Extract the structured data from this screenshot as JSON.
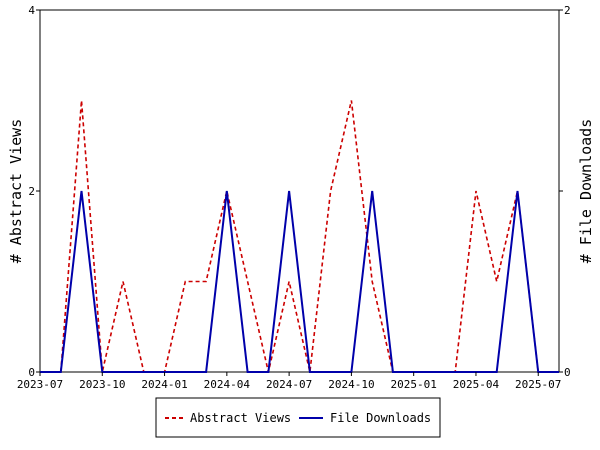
{
  "chart_data": {
    "type": "line",
    "title": "",
    "xlabel": "",
    "ylabel_left": "# Abstract Views",
    "ylabel_right": "# File Downloads",
    "ylim_left": [
      0,
      4
    ],
    "ylim_right": [
      0,
      2
    ],
    "yticks_left": [
      "0",
      "2",
      "4"
    ],
    "yticks_right": [
      "0",
      "1",
      "2"
    ],
    "xlim": [
      "2023-07",
      "2025-08"
    ],
    "x_tick_labels": [
      "2023-07",
      "2023-10",
      "2024-01",
      "2024-04",
      "2024-07",
      "2024-10",
      "2025-01",
      "2025-04",
      "2025-07"
    ],
    "grid": false,
    "legend_position": "bottom",
    "x": [
      "2023-07",
      "2023-08",
      "2023-09",
      "2023-10",
      "2023-11",
      "2023-12",
      "2024-01",
      "2024-02",
      "2024-03",
      "2024-04",
      "2024-05",
      "2024-06",
      "2024-07",
      "2024-08",
      "2024-09",
      "2024-10",
      "2024-11",
      "2024-12",
      "2025-01",
      "2025-02",
      "2025-03",
      "2025-04",
      "2025-05",
      "2025-06",
      "2025-07",
      "2025-08"
    ],
    "series": [
      {
        "name": "Abstract Views",
        "axis": "left",
        "color": "#cc0000",
        "style": "dashed",
        "values": [
          0,
          0,
          3,
          0,
          1,
          0,
          0,
          1,
          1,
          2,
          1,
          0,
          1,
          0,
          2,
          3,
          1,
          0,
          0,
          0,
          0,
          2,
          1,
          2,
          0,
          0
        ]
      },
      {
        "name": "File Downloads",
        "axis": "right",
        "color": "#0000aa",
        "style": "solid",
        "values": [
          0,
          0,
          1,
          0,
          0,
          0,
          0,
          0,
          0,
          1,
          0,
          0,
          1,
          0,
          0,
          0,
          1,
          0,
          0,
          0,
          0,
          0,
          0,
          1,
          0,
          0
        ]
      }
    ]
  }
}
